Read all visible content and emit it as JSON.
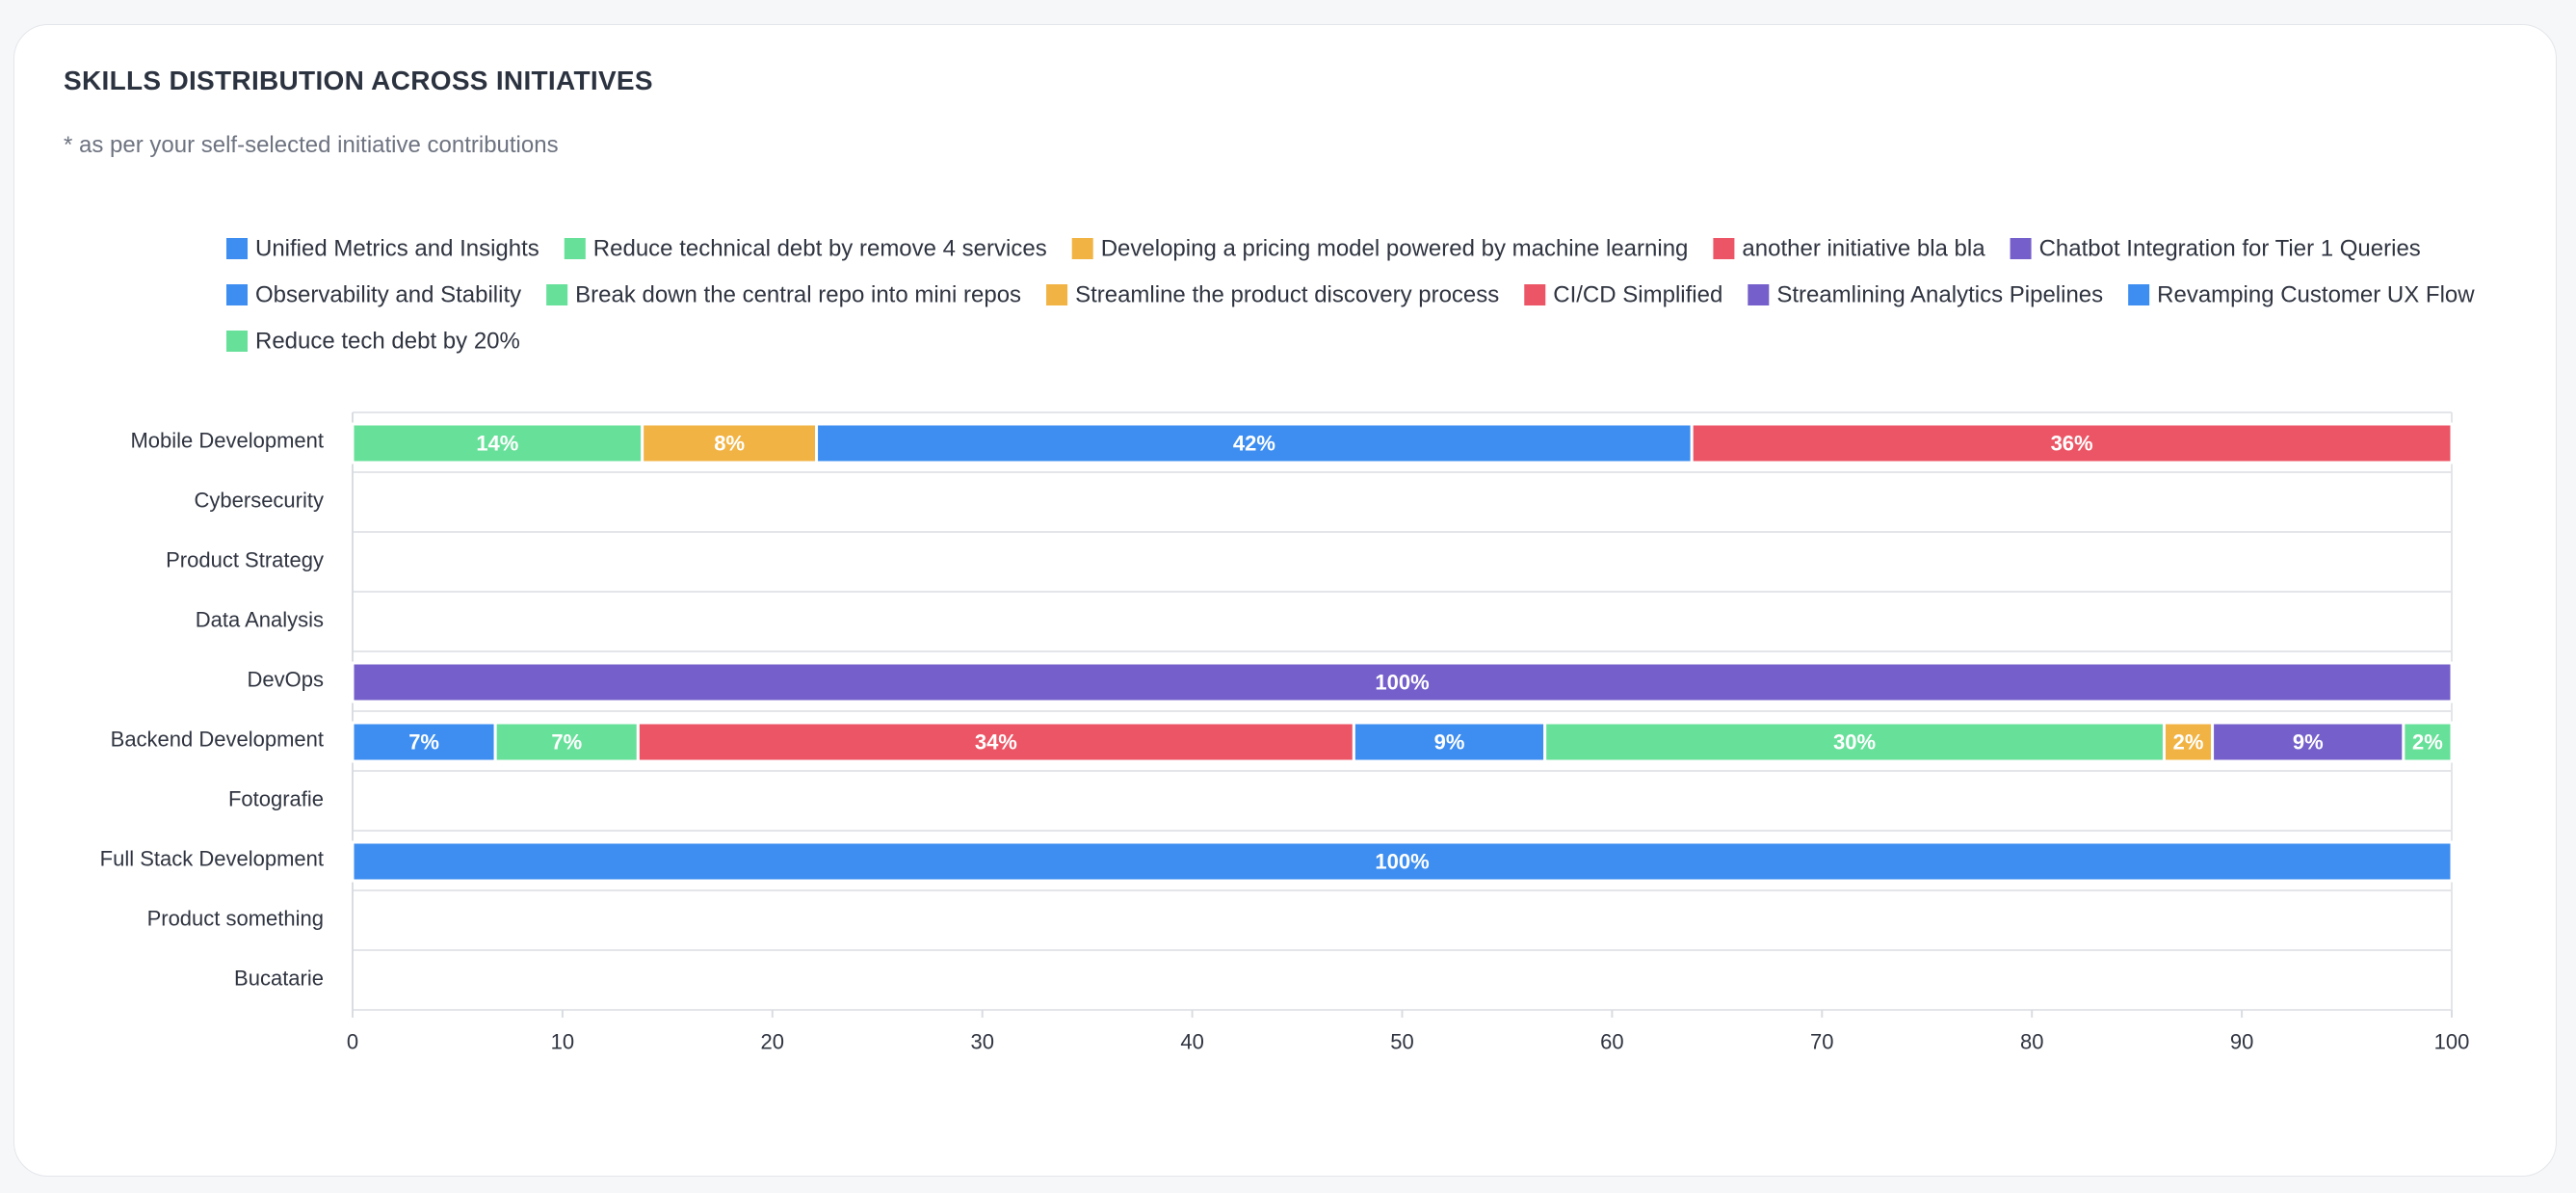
{
  "title": "SKILLS DISTRIBUTION ACROSS INITIATIVES",
  "subtitle": "* as per your self-selected initiative contributions",
  "chart_data": {
    "type": "bar",
    "orientation": "horizontal",
    "stacked": true,
    "xlim": [
      0,
      100
    ],
    "xticks": [
      "0",
      "10",
      "20",
      "30",
      "40",
      "50",
      "60",
      "70",
      "80",
      "90",
      "100"
    ],
    "grid": true,
    "legend_position": "top",
    "categories": [
      "Mobile Development",
      "Cybersecurity",
      "Product Strategy",
      "Data Analysis",
      "DevOps",
      "Backend Development",
      "Fotografie",
      "Full Stack Development",
      "Product something",
      "Bucatarie"
    ],
    "series": [
      {
        "name": "Unified Metrics and Insights",
        "color": "#3d8ef0",
        "values": [
          0,
          0,
          0,
          0,
          0,
          6.8,
          0,
          0,
          0,
          0
        ],
        "labels": [
          "",
          "",
          "",
          "",
          "",
          "7%",
          "",
          "",
          "",
          ""
        ]
      },
      {
        "name": "Reduce technical debt by remove 4 services",
        "color": "#67e09a",
        "values": [
          13.8,
          0,
          0,
          0,
          0,
          6.8,
          0,
          0,
          0,
          0
        ],
        "labels": [
          "14%",
          "",
          "",
          "",
          "",
          "7%",
          "",
          "",
          "",
          ""
        ]
      },
      {
        "name": "Developing a pricing model powered by machine learning",
        "color": "#f1b343",
        "values": [
          8.3,
          0,
          0,
          0,
          0,
          0,
          0,
          0,
          0,
          0
        ],
        "labels": [
          "8%",
          "",
          "",
          "",
          "",
          "",
          "",
          "",
          "",
          ""
        ]
      },
      {
        "name": "another initiative bla bla",
        "color": "#ec5565",
        "values": [
          0,
          0,
          0,
          0,
          0,
          34.1,
          0,
          0,
          0,
          0
        ],
        "labels": [
          "",
          "",
          "",
          "",
          "",
          "34%",
          "",
          "",
          "",
          ""
        ]
      },
      {
        "name": "Chatbot Integration for Tier 1 Queries",
        "color": "#755fcb",
        "values": [
          0,
          0,
          0,
          0,
          0,
          0,
          0,
          0,
          0,
          0
        ],
        "labels": [
          "",
          "",
          "",
          "",
          "",
          "",
          "",
          "",
          "",
          ""
        ]
      },
      {
        "name": "Observability and Stability",
        "color": "#3d8ef0",
        "values": [
          41.7,
          0,
          0,
          0,
          0,
          9.1,
          0,
          0,
          0,
          0
        ],
        "labels": [
          "42%",
          "",
          "",
          "",
          "",
          "9%",
          "",
          "",
          "",
          ""
        ]
      },
      {
        "name": "Break down the central repo into mini repos",
        "color": "#67e09a",
        "values": [
          0,
          0,
          0,
          0,
          0,
          29.5,
          0,
          0,
          0,
          0
        ],
        "labels": [
          "",
          "",
          "",
          "",
          "",
          "30%",
          "",
          "",
          "",
          ""
        ]
      },
      {
        "name": "Streamline the product discovery process",
        "color": "#f1b343",
        "values": [
          0,
          0,
          0,
          0,
          0,
          2.3,
          0,
          0,
          0,
          0
        ],
        "labels": [
          "",
          "",
          "",
          "",
          "",
          "2%",
          "",
          "",
          "",
          ""
        ]
      },
      {
        "name": "CI/CD Simplified",
        "color": "#ec5565",
        "values": [
          36.2,
          0,
          0,
          0,
          0,
          0,
          0,
          0,
          0,
          0
        ],
        "labels": [
          "36%",
          "",
          "",
          "",
          "",
          "",
          "",
          "",
          "",
          ""
        ]
      },
      {
        "name": "Streamlining Analytics Pipelines",
        "color": "#755fcb",
        "values": [
          0,
          0,
          0,
          0,
          100,
          9.1,
          0,
          0,
          0,
          0
        ],
        "labels": [
          "",
          "",
          "",
          "",
          "100%",
          "9%",
          "",
          "",
          "",
          ""
        ]
      },
      {
        "name": "Revamping Customer UX Flow",
        "color": "#3d8ef0",
        "values": [
          0,
          0,
          0,
          0,
          0,
          0,
          0,
          100,
          0,
          0
        ],
        "labels": [
          "",
          "",
          "",
          "",
          "",
          "",
          "",
          "100%",
          "",
          ""
        ]
      },
      {
        "name": "Reduce tech debt by 20%",
        "color": "#67e09a",
        "values": [
          0,
          0,
          0,
          0,
          0,
          2.3,
          0,
          0,
          0,
          0
        ],
        "labels": [
          "",
          "",
          "",
          "",
          "",
          "2%",
          "",
          "",
          "",
          ""
        ]
      }
    ]
  }
}
